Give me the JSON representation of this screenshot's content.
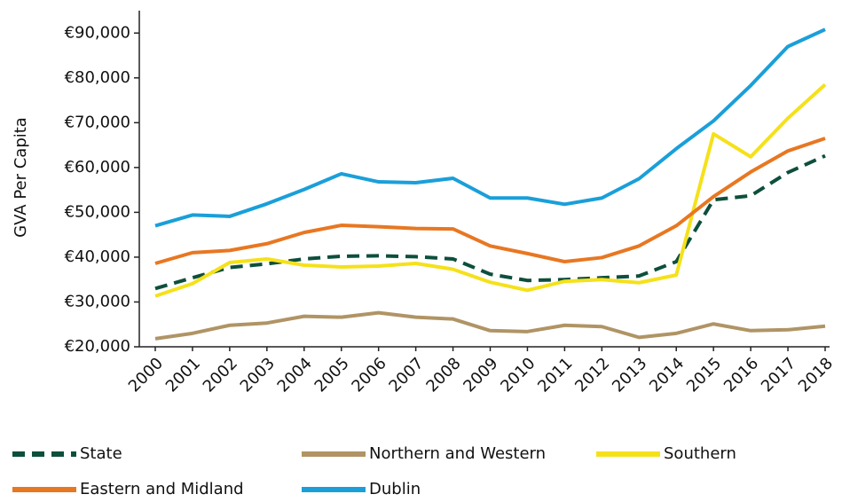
{
  "chart_data": {
    "type": "line",
    "y_label": "GVA Per Capita",
    "categories": [
      "2000",
      "2001",
      "2002",
      "2003",
      "2004",
      "2005",
      "2006",
      "2007",
      "2008",
      "2009",
      "2010",
      "2011",
      "2012",
      "2013",
      "2014",
      "2015",
      "2016",
      "2017",
      "2018"
    ],
    "ylim": [
      20000,
      95000
    ],
    "yticks": [
      {
        "value": 20000,
        "label": "€20,000"
      },
      {
        "value": 30000,
        "label": "€30,000"
      },
      {
        "value": 40000,
        "label": "€40,000"
      },
      {
        "value": 50000,
        "label": "€50,000"
      },
      {
        "value": 60000,
        "label": "€60,000"
      },
      {
        "value": 70000,
        "label": "€70,000"
      },
      {
        "value": 80000,
        "label": "€80,000"
      },
      {
        "value": 90000,
        "label": "€90,000"
      }
    ],
    "grid": false,
    "legend": "bottom",
    "series": [
      {
        "name": "State",
        "color": "#0d4f3c",
        "dashed": true,
        "values": [
          33000,
          35400,
          37700,
          38500,
          39600,
          40200,
          40300,
          40100,
          39600,
          36200,
          34800,
          35000,
          35400,
          35800,
          39000,
          52800,
          53700,
          58900,
          62600
        ]
      },
      {
        "name": "Northern and Western",
        "color": "#b09465",
        "values": [
          21800,
          23000,
          24800,
          25300,
          26800,
          26600,
          27600,
          26600,
          26200,
          23600,
          23400,
          24800,
          24500,
          22100,
          23000,
          25100,
          23600,
          23800,
          24600
        ]
      },
      {
        "name": "Southern",
        "color": "#f5e11a",
        "values": [
          31300,
          34100,
          38800,
          39600,
          38200,
          37800,
          38000,
          38600,
          37300,
          34400,
          32600,
          34600,
          35000,
          34300,
          36000,
          67500,
          62400,
          71000,
          78500
        ]
      },
      {
        "name": "Eastern and Midland",
        "color": "#e87722",
        "values": [
          38600,
          41000,
          41500,
          43000,
          45500,
          47100,
          46800,
          46400,
          46300,
          42500,
          40800,
          39000,
          39900,
          42500,
          47000,
          53500,
          59000,
          63700,
          66500
        ]
      },
      {
        "name": "Dublin",
        "color": "#1a9fd9",
        "values": [
          47000,
          49400,
          49100,
          51900,
          55100,
          58600,
          56800,
          56600,
          57600,
          53200,
          53200,
          51800,
          53200,
          57500,
          64200,
          70400,
          78300,
          87000,
          90800
        ]
      }
    ]
  }
}
